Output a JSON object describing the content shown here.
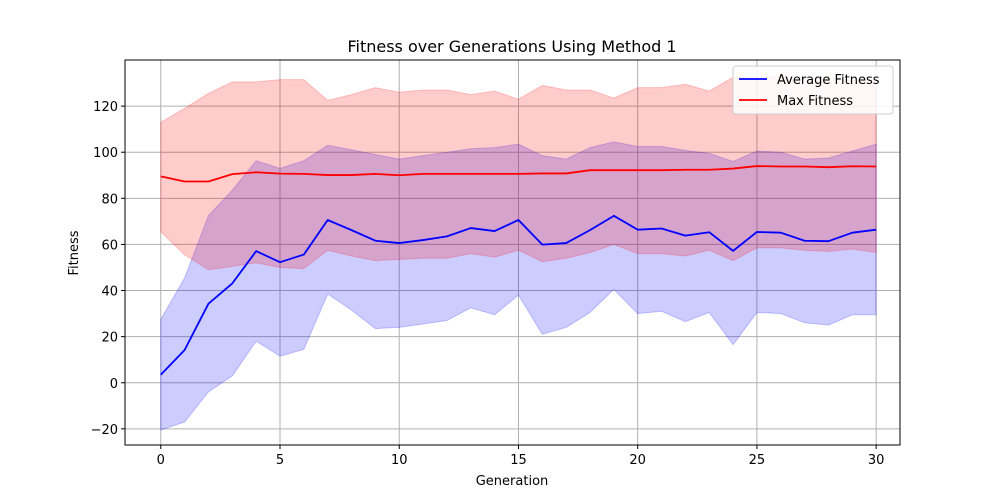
{
  "chart_data": {
    "type": "line",
    "title": "Fitness over Generations Using Method 1",
    "xlabel": "Generation",
    "ylabel": "Fitness",
    "xlim": [
      -1.5,
      31.0
    ],
    "ylim": [
      -27,
      140
    ],
    "xticks": [
      0,
      5,
      10,
      15,
      20,
      25,
      30
    ],
    "yticks": [
      -20,
      0,
      20,
      40,
      60,
      80,
      100,
      120
    ],
    "ytick_labels": [
      "−20",
      "0",
      "20",
      "40",
      "60",
      "80",
      "100",
      "120"
    ],
    "grid": true,
    "legend_position": "top-right",
    "x": [
      0,
      1,
      2,
      3,
      4,
      5,
      6,
      7,
      8,
      9,
      10,
      11,
      12,
      13,
      14,
      15,
      16,
      17,
      18,
      19,
      20,
      21,
      22,
      23,
      24,
      25,
      26,
      27,
      28,
      29,
      30
    ],
    "series": [
      {
        "name": "Average Fitness",
        "color": "#0000ff",
        "band_color": "#0000ff",
        "values": [
          3.5,
          14.2,
          34.3,
          43.1,
          57.1,
          52.3,
          55.6,
          70.6,
          66.2,
          61.6,
          60.6,
          61.9,
          63.5,
          67.1,
          65.8,
          70.6,
          59.9,
          60.6,
          66.2,
          72.4,
          66.4,
          66.9,
          63.8,
          65.3,
          57.2,
          65.4,
          65.1,
          61.6,
          61.4,
          65.1,
          66.4
        ],
        "upper": [
          27.5,
          45.5,
          72.5,
          83.5,
          96.3,
          93.0,
          96.3,
          103.0,
          101.0,
          99.0,
          97.0,
          98.5,
          100.0,
          101.5,
          102.0,
          103.5,
          98.5,
          97.0,
          102.0,
          104.5,
          102.5,
          102.5,
          100.8,
          99.5,
          96.0,
          100.5,
          100.0,
          97.0,
          97.5,
          100.5,
          103.5
        ],
        "lower": [
          -20.5,
          -17.0,
          -4.0,
          3.0,
          18.0,
          11.5,
          14.5,
          38.5,
          31.5,
          23.5,
          24.0,
          25.5,
          27.0,
          32.5,
          29.5,
          38.0,
          21.0,
          24.0,
          30.5,
          40.5,
          30.0,
          31.0,
          26.5,
          30.5,
          16.5,
          30.5,
          30.0,
          26.0,
          25.0,
          29.5,
          29.5
        ]
      },
      {
        "name": "Max Fitness",
        "color": "#ff0000",
        "band_color": "#ff0000",
        "values": [
          89.5,
          87.3,
          87.3,
          90.5,
          91.3,
          90.7,
          90.6,
          90.1,
          90.1,
          90.6,
          90.0,
          90.6,
          90.6,
          90.6,
          90.6,
          90.6,
          90.8,
          90.8,
          92.2,
          92.2,
          92.2,
          92.2,
          92.4,
          92.4,
          92.9,
          94.0,
          93.8,
          93.8,
          93.5,
          93.9,
          93.8
        ],
        "upper": [
          113.0,
          119.0,
          125.5,
          130.5,
          130.5,
          131.5,
          131.5,
          122.5,
          125.0,
          128.0,
          126.0,
          127.0,
          127.0,
          125.0,
          126.5,
          123.0,
          129.0,
          127.0,
          127.0,
          123.5,
          128.0,
          128.0,
          129.5,
          126.5,
          132.5,
          132.5,
          133.0,
          131.5,
          132.5,
          131.0,
          131.0
        ],
        "lower": [
          65.5,
          55.5,
          49.0,
          50.5,
          52.0,
          50.0,
          49.5,
          57.5,
          55.0,
          53.0,
          53.5,
          54.0,
          54.0,
          56.0,
          54.5,
          57.5,
          52.5,
          54.0,
          56.5,
          60.0,
          56.0,
          56.0,
          55.0,
          57.5,
          53.0,
          58.5,
          58.5,
          57.5,
          57.0,
          58.0,
          56.5
        ]
      }
    ]
  }
}
